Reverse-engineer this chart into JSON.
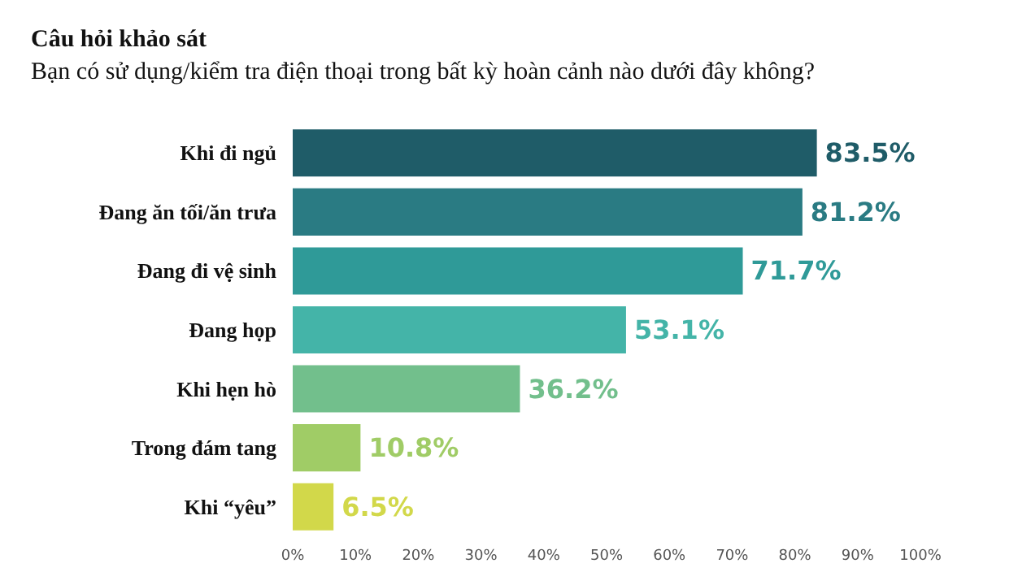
{
  "chart_data": {
    "type": "bar",
    "orientation": "horizontal",
    "title": "Câu hỏi khảo sát",
    "subtitle": "Bạn có sử dụng/kiểm tra điện thoại trong bất kỳ hoàn cảnh nào dưới đây không?",
    "categories": [
      "Khi đi ngủ",
      "Đang ăn tối/ăn trưa",
      "Đang đi vệ sinh",
      "Đang họp",
      "Khi hẹn hò",
      "Trong đám tang",
      "Khi “yêu”"
    ],
    "values": [
      83.5,
      81.2,
      71.7,
      53.1,
      36.2,
      10.8,
      6.5
    ],
    "value_labels": [
      "83.5%",
      "81.2%",
      "71.7%",
      "53.1%",
      "36.2%",
      "10.8%",
      "6.5%"
    ],
    "colors": [
      "#1f5c68",
      "#2a7b83",
      "#2f9a98",
      "#44b4a8",
      "#72bf8c",
      "#a0cc66",
      "#d2d84a"
    ],
    "xlim": [
      0,
      100
    ],
    "xticks": [
      {
        "value": 0,
        "label": "0%"
      },
      {
        "value": 10,
        "label": "10%"
      },
      {
        "value": 20,
        "label": "20%"
      },
      {
        "value": 30,
        "label": "30%"
      },
      {
        "value": 40,
        "label": "40%"
      },
      {
        "value": 50,
        "label": "50%"
      },
      {
        "value": 60,
        "label": "60%"
      },
      {
        "value": 70,
        "label": "70%"
      },
      {
        "value": 80,
        "label": "80%"
      },
      {
        "value": 90,
        "label": "90%"
      },
      {
        "value": 100,
        "label": "100%"
      }
    ],
    "grid": false
  }
}
